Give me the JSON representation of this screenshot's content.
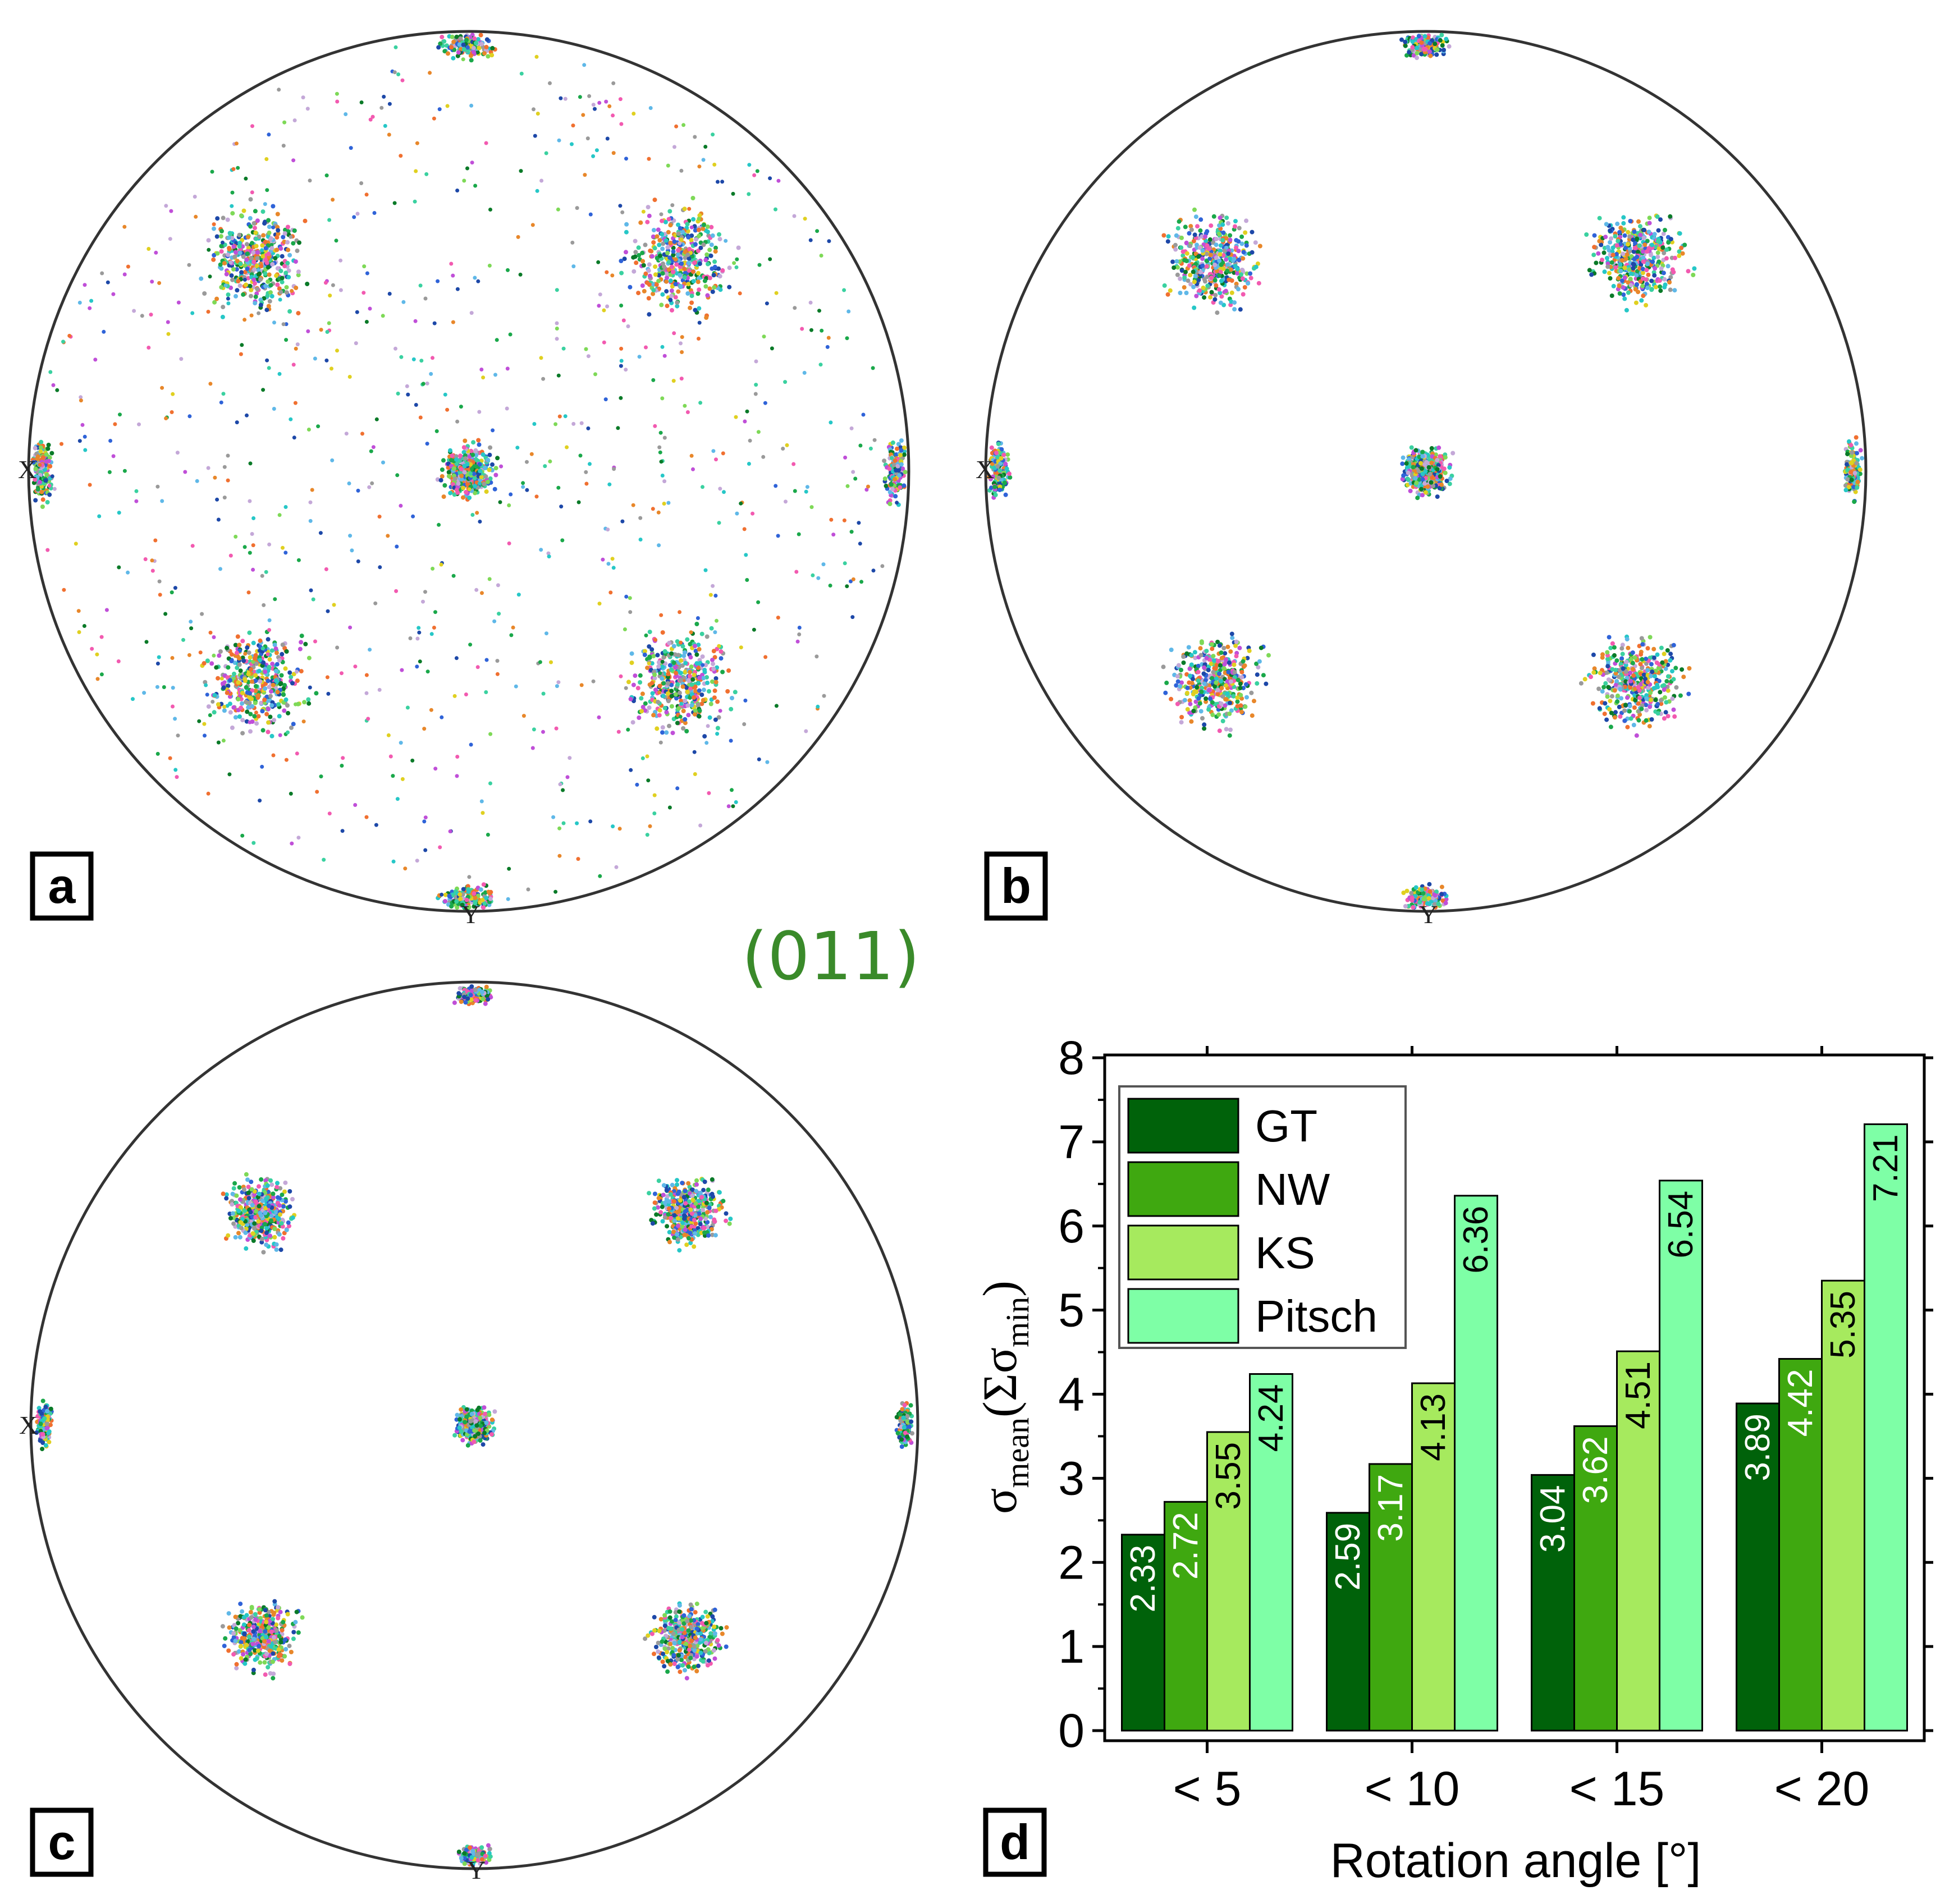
{
  "figure": {
    "center_label": "(011)",
    "center_label_color": "#3a8a2a",
    "panels": [
      {
        "letter": "a",
        "x_label": "X",
        "y_label": "Y",
        "spread": "wide"
      },
      {
        "letter": "b",
        "x_label": "X",
        "y_label": "Y",
        "spread": "medium"
      },
      {
        "letter": "c",
        "x_label": "X",
        "y_label": "Y",
        "spread": "narrow"
      },
      {
        "letter": "d"
      }
    ]
  },
  "chart_data": {
    "type": "bar",
    "title": "",
    "xlabel": "Rotation angle [°]",
    "ylabel": "σmean(Σσmin)",
    "ylabel_parts": {
      "main": "σ",
      "main_sub": "mean",
      "open": "(Σσ",
      "inner_sub": "min",
      "close": ")"
    },
    "ylim": [
      0,
      8
    ],
    "yticks": [
      "0",
      "1",
      "2",
      "3",
      "4",
      "5",
      "6",
      "7",
      "8"
    ],
    "categories": [
      "< 5",
      "< 10",
      "< 15",
      "< 20"
    ],
    "legend_position": "top-left",
    "series": [
      {
        "name": "GT",
        "color": "#00620a",
        "values": [
          2.33,
          2.59,
          3.04,
          3.89
        ],
        "labels": [
          "2.33",
          "2.59",
          "3.04",
          "3.89"
        ]
      },
      {
        "name": "NW",
        "color": "#3fa810",
        "values": [
          2.72,
          3.17,
          3.62,
          4.42
        ],
        "labels": [
          "2.72",
          "3.17",
          "3.62",
          "4.42"
        ]
      },
      {
        "name": "KS",
        "color": "#a6ea5e",
        "values": [
          3.55,
          4.13,
          4.51,
          5.35
        ],
        "labels": [
          "3.55",
          "4.13",
          "4.51",
          "5.35"
        ]
      },
      {
        "name": "Pitsch",
        "color": "#7effa6",
        "values": [
          4.24,
          6.36,
          6.54,
          7.21
        ],
        "labels": [
          "4.24",
          "6.36",
          "6.54",
          "7.21"
        ]
      }
    ]
  }
}
